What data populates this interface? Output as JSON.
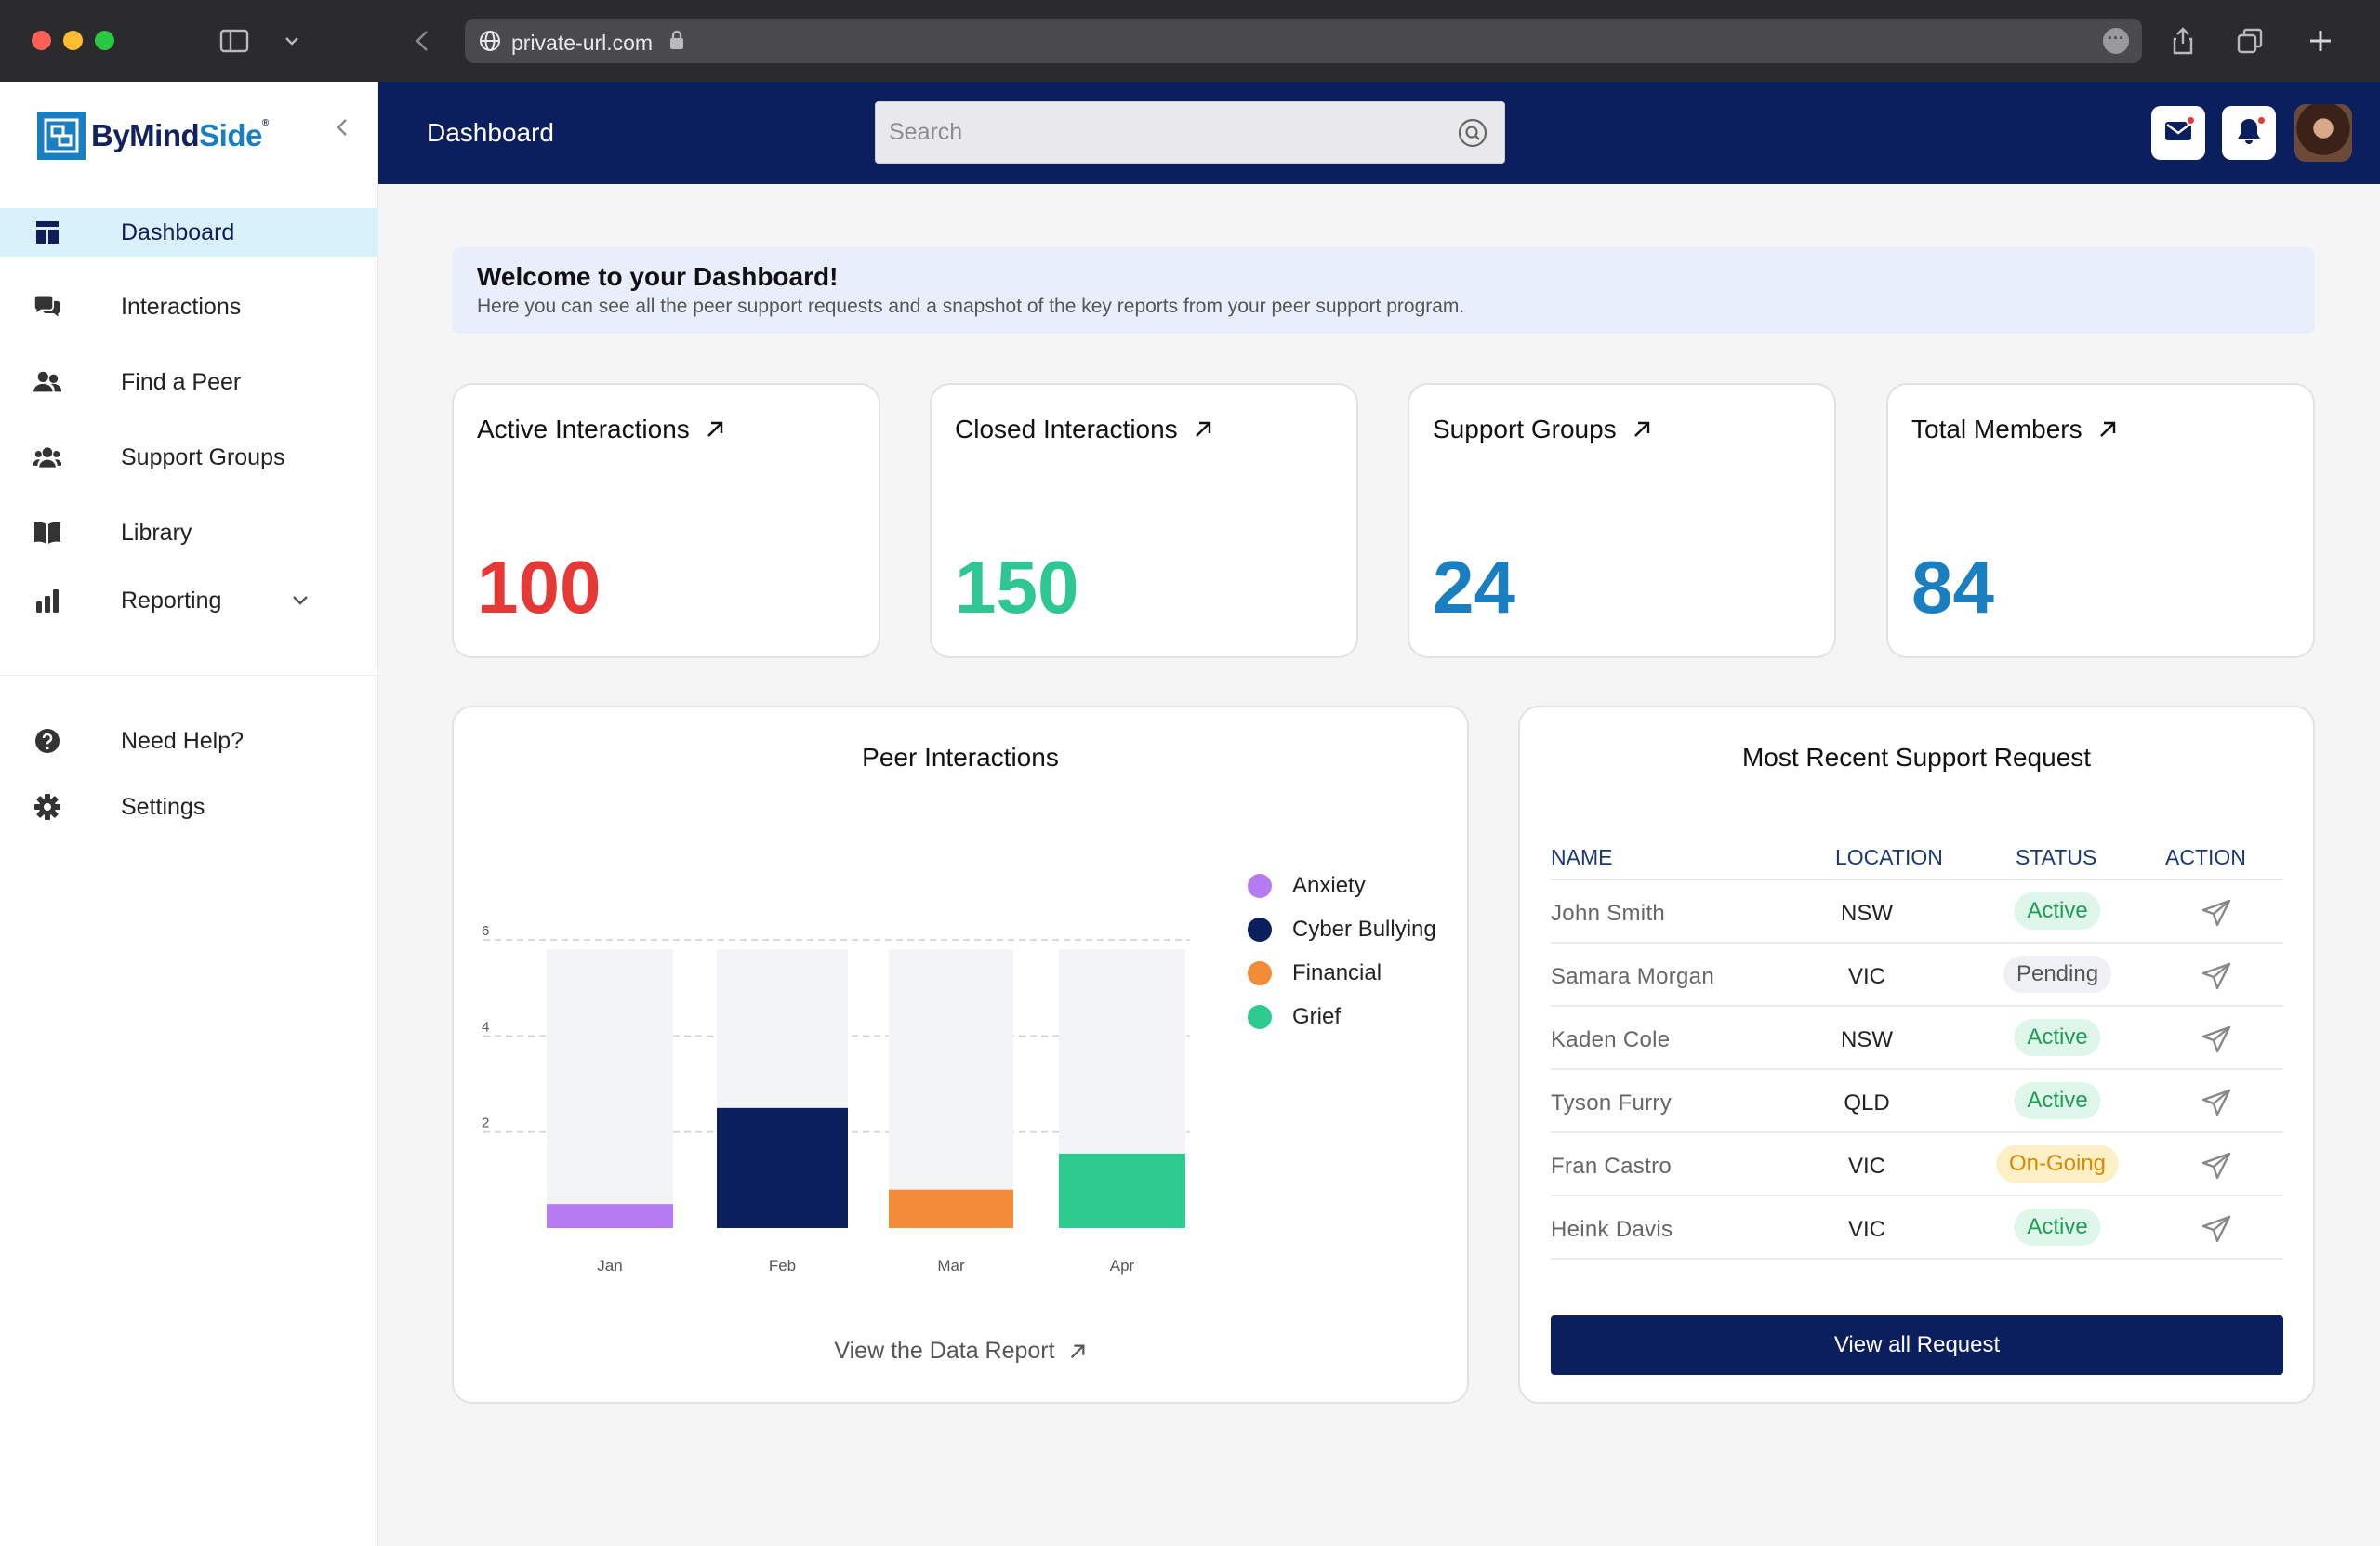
{
  "browser": {
    "url": "private-url.com"
  },
  "sidebar": {
    "logo": {
      "part1": "ByMind",
      "part2": "Side",
      "reg": "®"
    },
    "items": [
      {
        "label": "Dashboard",
        "icon": "dashboard-icon",
        "active": true
      },
      {
        "label": "Interactions",
        "icon": "chat-icon"
      },
      {
        "label": "Find a Peer",
        "icon": "users-icon"
      },
      {
        "label": "Support Groups",
        "icon": "group-icon"
      },
      {
        "label": "Library",
        "icon": "book-icon"
      },
      {
        "label": "Reporting",
        "icon": "bar-chart-icon"
      }
    ],
    "bottom_items": [
      {
        "label": "Need Help?",
        "icon": "help-icon"
      },
      {
        "label": "Settings",
        "icon": "gear-icon"
      }
    ]
  },
  "header": {
    "title": "Dashboard",
    "search_placeholder": "Search"
  },
  "welcome": {
    "title": "Welcome to your Dashboard!",
    "subtitle": "Here you can see all the peer support requests and a snapshot of the key reports from your peer support program."
  },
  "stats": [
    {
      "label": "Active Interactions",
      "value": "100",
      "color": "#e53935"
    },
    {
      "label": "Closed Interactions",
      "value": "150",
      "color": "#2ec792"
    },
    {
      "label": "Support Groups",
      "value": "24",
      "color": "#1a7fc1"
    },
    {
      "label": "Total Members",
      "value": "84",
      "color": "#1a7fc1"
    }
  ],
  "chart": {
    "title": "Peer Interactions",
    "view_link": "View the Data Report"
  },
  "chart_data": {
    "type": "bar",
    "categories": [
      "Jan",
      "Feb",
      "Mar",
      "Apr"
    ],
    "values": [
      0.5,
      2.5,
      0.8,
      1.55
    ],
    "max_background": 5.8,
    "colors": [
      "#b57cf2",
      "#0b1f5e",
      "#f28c38",
      "#2ecb91"
    ],
    "legend": [
      {
        "name": "Anxiety",
        "color": "#b57cf2"
      },
      {
        "name": "Cyber Bullying",
        "color": "#0b1f5e"
      },
      {
        "name": "Financial",
        "color": "#f28c38"
      },
      {
        "name": "Grief",
        "color": "#2ecb91"
      }
    ],
    "yticks": [
      2,
      4,
      6
    ],
    "ylim": [
      0,
      6
    ],
    "grid": true,
    "legend_placement": "right"
  },
  "requests": {
    "title": "Most Recent Support Request",
    "columns": [
      "NAME",
      "LOCATION",
      "STATUS",
      "ACTION"
    ],
    "rows": [
      {
        "name": "John Smith",
        "location": "NSW",
        "status": "Active",
        "kind": "active"
      },
      {
        "name": "Samara Morgan",
        "location": "VIC",
        "status": "Pending",
        "kind": "pending"
      },
      {
        "name": "Kaden Cole",
        "location": "NSW",
        "status": "Active",
        "kind": "active"
      },
      {
        "name": "Tyson Furry",
        "location": "QLD",
        "status": "Active",
        "kind": "active"
      },
      {
        "name": "Fran Castro",
        "location": "VIC",
        "status": "On-Going",
        "kind": "ongoing"
      },
      {
        "name": "Heink Davis",
        "location": "VIC",
        "status": "Active",
        "kind": "active"
      }
    ],
    "button": "View all Request"
  }
}
